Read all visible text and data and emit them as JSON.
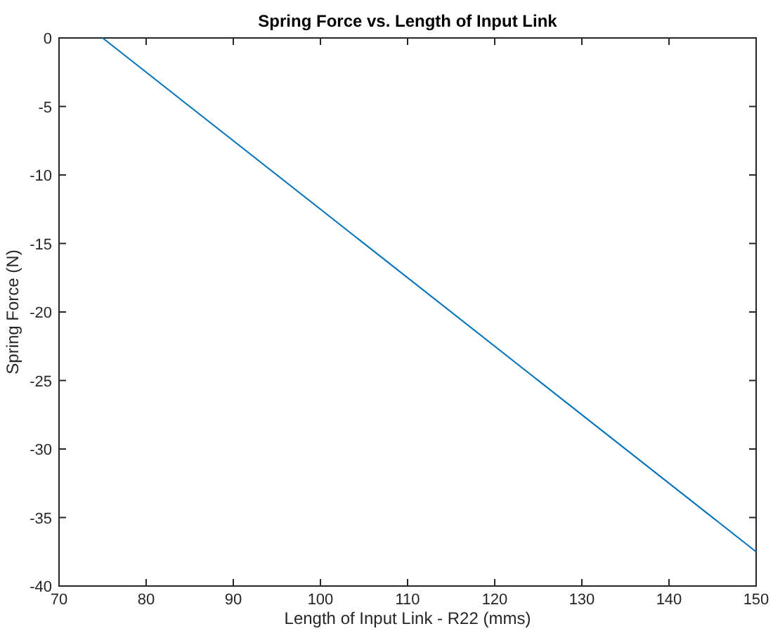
{
  "chart_data": {
    "type": "line",
    "title": "Spring Force vs. Length of Input Link",
    "xlabel": "Length of Input Link - R22 (mms)",
    "ylabel": "Spring Force (N)",
    "x": [
      75,
      150
    ],
    "series": [
      {
        "color": "#0072bd",
        "values": [
          0,
          -37.5
        ]
      }
    ],
    "xlim": [
      70,
      150
    ],
    "xticks": [
      70,
      80,
      90,
      100,
      110,
      120,
      130,
      140,
      150
    ],
    "ylim": [
      -40,
      0
    ],
    "yticks": [
      -40,
      -35,
      -30,
      -25,
      -20,
      -15,
      -10,
      -5,
      0
    ],
    "grid": false,
    "marker": "none",
    "line_style": "solid"
  }
}
